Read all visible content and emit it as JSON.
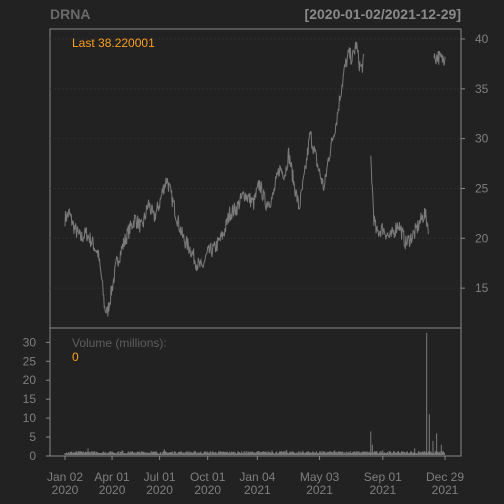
{
  "header": {
    "symbol": "DRNA",
    "date_range": "[2020-01-02/2021-12-29]"
  },
  "price_panel": {
    "last_label": "Last 38.220001"
  },
  "volume_panel": {
    "label": "Volume (millions):",
    "value": "0"
  },
  "colors": {
    "background": "#222222",
    "panel_border": "#888888",
    "grid": "#2e2e2e",
    "series": "#7a7a7a",
    "accent": "#ff9f1a"
  },
  "chart_data": {
    "type": "line",
    "title": "DRNA",
    "subtitle": "[2020-01-02/2021-12-29]",
    "x_tick_labels": [
      {
        "date": "2020-01-02",
        "line1": "Jan 02",
        "line2": "2020"
      },
      {
        "date": "2020-04-01",
        "line1": "Apr 01",
        "line2": "2020"
      },
      {
        "date": "2020-07-01",
        "line1": "Jul 01",
        "line2": "2020"
      },
      {
        "date": "2020-10-01",
        "line1": "Oct 01",
        "line2": "2020"
      },
      {
        "date": "2021-01-04",
        "line1": "Jan 04",
        "line2": "2021"
      },
      {
        "date": "2021-05-03",
        "line1": "May 03",
        "line2": "2021"
      },
      {
        "date": "2021-09-01",
        "line1": "Sep 01",
        "line2": "2021"
      },
      {
        "date": "2021-12-29",
        "line1": "Dec 29",
        "line2": "2021"
      }
    ],
    "price": {
      "ylim": [
        11,
        41
      ],
      "yticks": [
        15,
        20,
        25,
        30,
        35,
        40
      ],
      "last": 38.220001,
      "points": [
        [
          "2020-01-02",
          22.0
        ],
        [
          "2020-01-10",
          22.5
        ],
        [
          "2020-01-20",
          21.0
        ],
        [
          "2020-02-01",
          20.0
        ],
        [
          "2020-02-12",
          20.5
        ],
        [
          "2020-02-24",
          19.5
        ],
        [
          "2020-03-05",
          18.5
        ],
        [
          "2020-03-12",
          16.0
        ],
        [
          "2020-03-18",
          13.0
        ],
        [
          "2020-03-23",
          12.5
        ],
        [
          "2020-04-01",
          15.0
        ],
        [
          "2020-04-10",
          17.5
        ],
        [
          "2020-04-20",
          19.0
        ],
        [
          "2020-05-01",
          20.5
        ],
        [
          "2020-05-15",
          22.0
        ],
        [
          "2020-05-28",
          21.0
        ],
        [
          "2020-06-10",
          23.5
        ],
        [
          "2020-06-20",
          22.0
        ],
        [
          "2020-07-01",
          23.5
        ],
        [
          "2020-07-08",
          25.0
        ],
        [
          "2020-07-15",
          26.0
        ],
        [
          "2020-07-22",
          24.5
        ],
        [
          "2020-08-01",
          22.5
        ],
        [
          "2020-08-15",
          20.0
        ],
        [
          "2020-08-28",
          19.0
        ],
        [
          "2020-09-10",
          17.5
        ],
        [
          "2020-09-20",
          17.0
        ],
        [
          "2020-10-01",
          18.5
        ],
        [
          "2020-10-15",
          19.0
        ],
        [
          "2020-11-01",
          20.5
        ],
        [
          "2020-11-12",
          22.5
        ],
        [
          "2020-11-25",
          23.0
        ],
        [
          "2020-12-10",
          24.5
        ],
        [
          "2020-12-28",
          23.5
        ],
        [
          "2021-01-08",
          25.5
        ],
        [
          "2021-01-20",
          23.5
        ],
        [
          "2021-02-02",
          24.0
        ],
        [
          "2021-02-15",
          27.0
        ],
        [
          "2021-02-26",
          26.5
        ],
        [
          "2021-03-05",
          28.5
        ],
        [
          "2021-03-15",
          25.5
        ],
        [
          "2021-03-25",
          23.0
        ],
        [
          "2021-04-05",
          26.5
        ],
        [
          "2021-04-15",
          30.5
        ],
        [
          "2021-04-22",
          29.0
        ],
        [
          "2021-05-03",
          26.5
        ],
        [
          "2021-05-12",
          25.0
        ],
        [
          "2021-05-20",
          28.0
        ],
        [
          "2021-05-28",
          30.0
        ],
        [
          "2021-06-05",
          32.0
        ],
        [
          "2021-06-12",
          34.5
        ],
        [
          "2021-06-20",
          37.0
        ],
        [
          "2021-06-28",
          38.5
        ],
        [
          "2021-07-05",
          38.0
        ],
        [
          "2021-07-12",
          39.5
        ],
        [
          "2021-07-18",
          37.5
        ],
        [
          "2021-07-22",
          37.0
        ],
        [
          "2021-07-28",
          38.0
        ],
        [
          "2021-08-09",
          28.0
        ],
        [
          "2021-08-12",
          25.0
        ],
        [
          "2021-08-15",
          22.0
        ],
        [
          "2021-08-20",
          20.5
        ],
        [
          "2021-09-01",
          21.0
        ],
        [
          "2021-09-15",
          20.0
        ],
        [
          "2021-10-01",
          21.5
        ],
        [
          "2021-10-15",
          19.5
        ],
        [
          "2021-11-01",
          20.5
        ],
        [
          "2021-11-10",
          21.5
        ],
        [
          "2021-11-20",
          22.5
        ],
        [
          "2021-11-28",
          21.0
        ],
        [
          "2021-12-08",
          38.0
        ],
        [
          "2021-12-15",
          38.3
        ],
        [
          "2021-12-22",
          37.9
        ],
        [
          "2021-12-29",
          38.22
        ]
      ]
    },
    "volume": {
      "ylabel": "Volume (millions):",
      "ylim": [
        0,
        33
      ],
      "yticks": [
        0,
        5,
        10,
        15,
        20,
        25,
        30
      ],
      "points": [
        [
          "2020-01-02",
          0.8
        ],
        [
          "2020-02-01",
          1.0
        ],
        [
          "2020-02-15",
          2.0
        ],
        [
          "2020-03-01",
          0.9
        ],
        [
          "2020-04-01",
          1.2
        ],
        [
          "2020-04-20",
          1.5
        ],
        [
          "2020-05-15",
          1.0
        ],
        [
          "2020-06-15",
          1.3
        ],
        [
          "2020-07-10",
          1.8
        ],
        [
          "2020-08-01",
          1.1
        ],
        [
          "2020-09-01",
          0.9
        ],
        [
          "2020-10-01",
          1.0
        ],
        [
          "2020-11-01",
          1.2
        ],
        [
          "2020-12-01",
          1.0
        ],
        [
          "2021-01-04",
          1.3
        ],
        [
          "2021-02-01",
          1.5
        ],
        [
          "2021-03-01",
          1.6
        ],
        [
          "2021-04-01",
          1.4
        ],
        [
          "2021-05-03",
          1.2
        ],
        [
          "2021-06-01",
          1.5
        ],
        [
          "2021-07-01",
          1.3
        ],
        [
          "2021-08-09",
          6.5
        ],
        [
          "2021-08-12",
          3.0
        ],
        [
          "2021-09-01",
          1.5
        ],
        [
          "2021-10-01",
          1.3
        ],
        [
          "2021-11-01",
          2.0
        ],
        [
          "2021-11-24",
          32.5
        ],
        [
          "2021-11-29",
          11.0
        ],
        [
          "2021-12-06",
          4.0
        ],
        [
          "2021-12-13",
          6.0
        ],
        [
          "2021-12-22",
          3.0
        ],
        [
          "2021-12-29",
          0.0
        ]
      ]
    }
  }
}
